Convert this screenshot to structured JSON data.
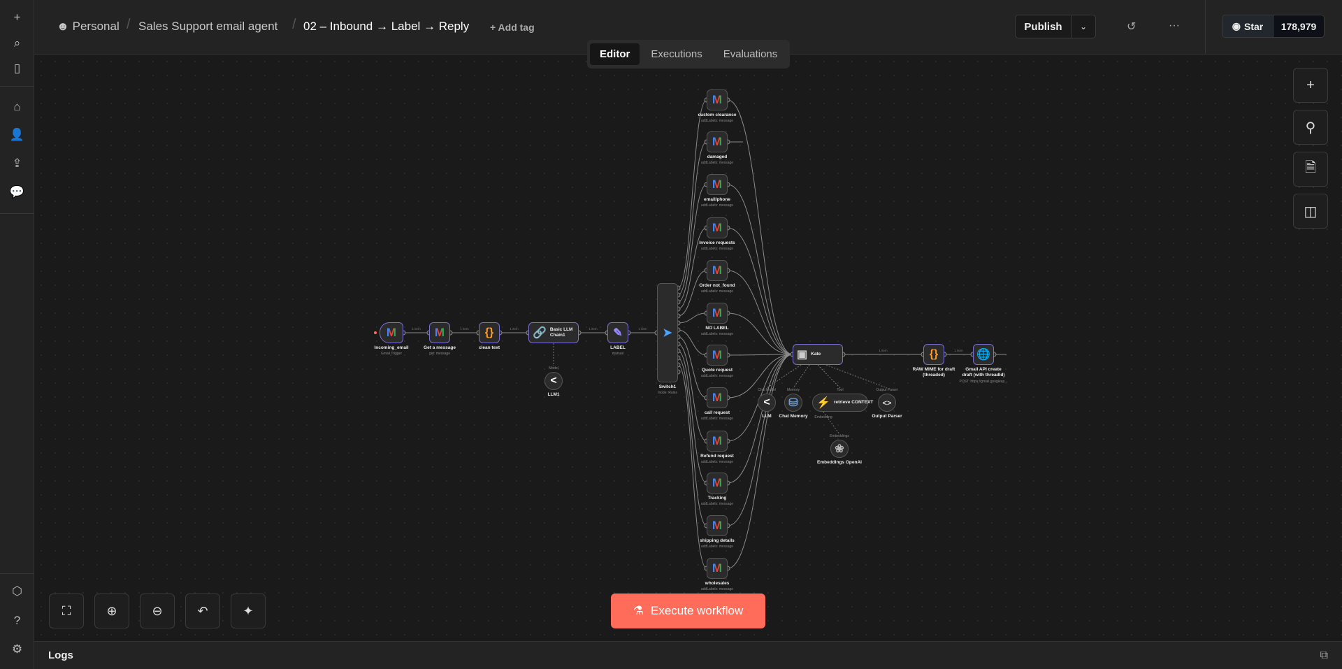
{
  "sidebar": {
    "top": [
      {
        "icon": "plus-icon",
        "glyph": "+"
      },
      {
        "icon": "search-icon",
        "glyph": "⌕"
      },
      {
        "icon": "panel-icon",
        "glyph": "▯"
      }
    ],
    "nav": [
      {
        "icon": "home-icon",
        "glyph": "⌂"
      },
      {
        "icon": "user-icon",
        "glyph": "👤"
      },
      {
        "icon": "share-icon",
        "glyph": "⇪"
      },
      {
        "icon": "chat-icon",
        "glyph": "💬"
      }
    ],
    "bottom": [
      {
        "icon": "templates-icon",
        "glyph": "⬡"
      },
      {
        "icon": "help-icon",
        "glyph": "?"
      },
      {
        "icon": "settings-icon",
        "glyph": "⚙"
      }
    ]
  },
  "header": {
    "breadcrumb": [
      "Personal",
      "Sales Support email agent",
      "02 – Inbound → Label → Reply"
    ],
    "add_tag": "+ Add tag",
    "publish": "Publish",
    "star": "Star",
    "star_count": "178,979"
  },
  "tabs": [
    {
      "label": "Editor",
      "active": true
    },
    {
      "label": "Executions"
    },
    {
      "label": "Evaluations"
    }
  ],
  "execute_label": "Execute workflow",
  "logs_label": "Logs",
  "edge_label": "1 item",
  "nodes": [
    {
      "id": "trigger",
      "label": "Incoming_email",
      "subtitle": "Gmail Trigger",
      "icon": "gmail"
    },
    {
      "id": "get",
      "label": "Get a message",
      "subtitle": "get: message",
      "icon": "gmail"
    },
    {
      "id": "clean",
      "label": "clean text",
      "subtitle": "",
      "icon": "code"
    },
    {
      "id": "chain",
      "label": "Basic LLM Chain1",
      "subtitle": "",
      "icon": "link"
    },
    {
      "id": "label",
      "label": "LABEL",
      "subtitle": "manual",
      "icon": "pen"
    },
    {
      "id": "llm1",
      "label": "LLM1",
      "subtitle": "",
      "icon": "llm"
    },
    {
      "id": "switch",
      "label": "Switch1",
      "subtitle": "mode: Rules",
      "icon": "switch"
    },
    {
      "id": "g0",
      "label": "custom clearance",
      "subtitle": "addLabels: message",
      "icon": "gmail"
    },
    {
      "id": "g1",
      "label": "damaged",
      "subtitle": "addLabels: message",
      "icon": "gmail"
    },
    {
      "id": "g2",
      "label": "email/phone",
      "subtitle": "addLabels: message",
      "icon": "gmail"
    },
    {
      "id": "g3",
      "label": "Invoice requests",
      "subtitle": "addLabels: message",
      "icon": "gmail"
    },
    {
      "id": "g4",
      "label": "Order not_found",
      "subtitle": "addLabels: message",
      "icon": "gmail"
    },
    {
      "id": "g5",
      "label": "NO LABEL",
      "subtitle": "addLabels: message",
      "icon": "gmail"
    },
    {
      "id": "g6",
      "label": "Quote request",
      "subtitle": "addLabels: message",
      "icon": "gmail"
    },
    {
      "id": "g7",
      "label": "call request",
      "subtitle": "addLabels: message",
      "icon": "gmail"
    },
    {
      "id": "g8",
      "label": "Refund request",
      "subtitle": "addLabels: message",
      "icon": "gmail"
    },
    {
      "id": "g9",
      "label": "Tracking",
      "subtitle": "addLabels: message",
      "icon": "gmail"
    },
    {
      "id": "g10",
      "label": "shipping details",
      "subtitle": "addLabels: message",
      "icon": "gmail"
    },
    {
      "id": "g11",
      "label": "wholesales",
      "subtitle": "addLabels: message",
      "icon": "gmail"
    },
    {
      "id": "kate",
      "label": "Kate",
      "subtitle": "",
      "icon": "robot"
    },
    {
      "id": "llm",
      "label": "LLM",
      "subtitle": "",
      "icon": "llm"
    },
    {
      "id": "mem",
      "label": "Chat Memory",
      "subtitle": "",
      "icon": "db"
    },
    {
      "id": "ctx",
      "label": "retrieve CONTEXT",
      "subtitle": "",
      "icon": "bolt"
    },
    {
      "id": "parser",
      "label": "Output Parser",
      "subtitle": "",
      "icon": "brackets"
    },
    {
      "id": "emb",
      "label": "Embeddings OpenAI",
      "subtitle": "",
      "icon": "openai"
    },
    {
      "id": "mime",
      "label": "RAW MIME for draft (threaded)",
      "subtitle": "",
      "icon": "code"
    },
    {
      "id": "api",
      "label": "Gmail API create draft (with threadId)",
      "subtitle": "POST: https://gmail.googleap...",
      "icon": "globe"
    }
  ],
  "subnode_ports": [
    "Chat Model",
    "Memory",
    "Tool",
    "Output Parser",
    "Model",
    "Embedding",
    "Embeddings"
  ],
  "colors": {
    "accent": "#ff6d5a",
    "node_border_active": "#7a6fd3"
  }
}
